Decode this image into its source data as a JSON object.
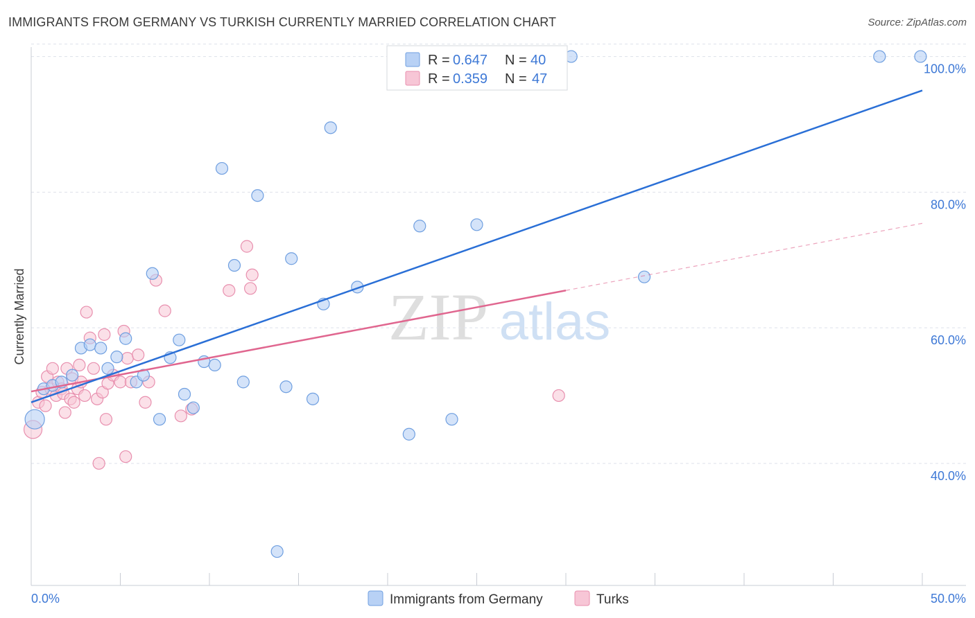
{
  "title": "IMMIGRANTS FROM GERMANY VS TURKISH CURRENTLY MARRIED CORRELATION CHART",
  "source": "Source: ZipAtlas.com",
  "watermark": {
    "zip": "ZIP",
    "atlas": "atlas"
  },
  "colors": {
    "blue_fill": "#b8d1f5",
    "blue_stroke": "#6f9fe0",
    "blue_line": "#2a6fd6",
    "pink_fill": "#f7c6d6",
    "pink_stroke": "#e88fae",
    "pink_line": "#e0668f",
    "grid": "#dde1ea",
    "tick_text": "#3d78d6"
  },
  "legend": {
    "rows": [
      {
        "r_label": "R = ",
        "r_value": "0.647",
        "n_label": "N = ",
        "n_value": "40"
      },
      {
        "r_label": "R = ",
        "r_value": "0.359",
        "n_label": "N = ",
        "n_value": "47"
      }
    ]
  },
  "chart_data": {
    "type": "scatter",
    "title": "IMMIGRANTS FROM GERMANY VS TURKISH CURRENTLY MARRIED CORRELATION CHART",
    "xlabel": "",
    "ylabel": "Currently Married",
    "xlim": [
      0,
      50
    ],
    "ylim": [
      22,
      102
    ],
    "x_tick_labels": [
      "0.0%",
      "50.0%"
    ],
    "y_ticks": [
      40,
      60,
      80,
      100
    ],
    "y_tick_labels": [
      "40.0%",
      "60.0%",
      "80.0%",
      "100.0%"
    ],
    "grid": true,
    "legend_position": "bottom-center",
    "series": [
      {
        "name": "Immigrants from Germany",
        "color": "blue",
        "r": 0.647,
        "n": 40,
        "trend": {
          "x": [
            0,
            50
          ],
          "y": [
            49.0,
            95.0
          ]
        },
        "points": [
          [
            0.2,
            46.5
          ],
          [
            0.7,
            51.0
          ],
          [
            1.2,
            51.5
          ],
          [
            1.7,
            52.0
          ],
          [
            2.3,
            53.0
          ],
          [
            2.8,
            57.0
          ],
          [
            3.3,
            57.5
          ],
          [
            3.9,
            57.0
          ],
          [
            4.3,
            54.0
          ],
          [
            4.8,
            55.7
          ],
          [
            5.3,
            58.4
          ],
          [
            5.9,
            52.0
          ],
          [
            6.3,
            53.0
          ],
          [
            6.8,
            68.0
          ],
          [
            7.2,
            46.5
          ],
          [
            7.8,
            55.6
          ],
          [
            8.3,
            58.2
          ],
          [
            8.6,
            50.2
          ],
          [
            9.1,
            48.2
          ],
          [
            9.7,
            55.0
          ],
          [
            10.3,
            54.5
          ],
          [
            10.7,
            83.5
          ],
          [
            11.4,
            69.2
          ],
          [
            11.9,
            52.0
          ],
          [
            12.7,
            79.5
          ],
          [
            13.8,
            27.0
          ],
          [
            14.3,
            51.3
          ],
          [
            14.6,
            70.2
          ],
          [
            15.8,
            49.5
          ],
          [
            16.4,
            63.5
          ],
          [
            16.8,
            89.5
          ],
          [
            18.3,
            66.0
          ],
          [
            21.2,
            44.3
          ],
          [
            21.8,
            75.0
          ],
          [
            23.6,
            46.5
          ],
          [
            25.0,
            75.2
          ],
          [
            30.3,
            100.0
          ],
          [
            34.4,
            67.5
          ],
          [
            47.6,
            100.0
          ],
          [
            49.9,
            100.0
          ]
        ]
      },
      {
        "name": "Turks",
        "color": "pink",
        "r": 0.359,
        "n": 47,
        "trend": {
          "x": [
            0,
            30
          ],
          "y": [
            50.6,
            65.5
          ]
        },
        "trend_dashed": {
          "x": [
            30,
            50
          ],
          "y": [
            65.5,
            75.4
          ]
        },
        "points": [
          [
            0.1,
            45.0
          ],
          [
            0.4,
            49.0
          ],
          [
            0.6,
            50.5
          ],
          [
            0.8,
            48.5
          ],
          [
            0.9,
            52.8
          ],
          [
            1.1,
            51.0
          ],
          [
            1.2,
            54.0
          ],
          [
            1.4,
            50.0
          ],
          [
            1.5,
            52.0
          ],
          [
            1.7,
            51.0
          ],
          [
            1.8,
            50.3
          ],
          [
            1.9,
            47.5
          ],
          [
            2.0,
            54.0
          ],
          [
            2.2,
            49.5
          ],
          [
            2.3,
            52.5
          ],
          [
            2.4,
            49.0
          ],
          [
            2.6,
            51.0
          ],
          [
            2.7,
            54.5
          ],
          [
            2.8,
            52.0
          ],
          [
            3.0,
            50.0
          ],
          [
            3.1,
            62.3
          ],
          [
            3.3,
            58.5
          ],
          [
            3.5,
            54.0
          ],
          [
            3.7,
            49.5
          ],
          [
            3.8,
            40.0
          ],
          [
            4.0,
            50.5
          ],
          [
            4.1,
            59.0
          ],
          [
            4.2,
            46.5
          ],
          [
            4.3,
            51.8
          ],
          [
            4.6,
            53.0
          ],
          [
            5.0,
            52.0
          ],
          [
            5.2,
            59.5
          ],
          [
            5.3,
            41.0
          ],
          [
            5.4,
            55.5
          ],
          [
            5.6,
            52.0
          ],
          [
            6.0,
            56.0
          ],
          [
            6.4,
            49.0
          ],
          [
            6.6,
            52.0
          ],
          [
            7.0,
            67.0
          ],
          [
            7.5,
            62.5
          ],
          [
            8.4,
            47.0
          ],
          [
            9.0,
            48.0
          ],
          [
            11.1,
            65.5
          ],
          [
            12.1,
            72.0
          ],
          [
            12.3,
            65.8
          ],
          [
            12.4,
            67.8
          ],
          [
            29.6,
            50.0
          ]
        ]
      }
    ]
  },
  "bottom_legend": {
    "items": [
      "Immigrants from Germany",
      "Turks"
    ]
  }
}
